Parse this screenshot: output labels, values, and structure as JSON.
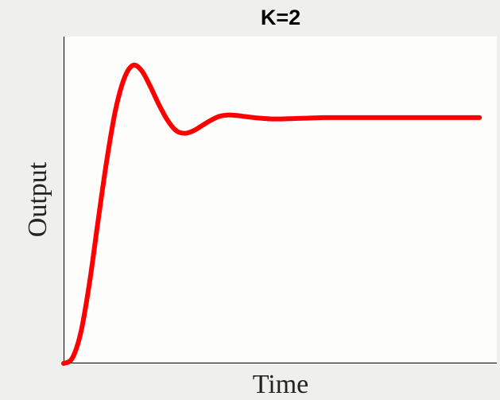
{
  "chart_data": {
    "type": "line",
    "title": "K=2",
    "xlabel": "Time",
    "ylabel": "Output",
    "xticks_visible": false,
    "yticks_visible": false,
    "grid": false,
    "plot_background": "#fdfdfb",
    "figure_background": "#efefee",
    "xlim": [
      0,
      10
    ],
    "ylim": [
      0,
      1.25
    ],
    "series": [
      {
        "color": "#ff0000",
        "x": [
          0,
          0.2,
          0.4,
          0.6,
          0.8,
          1.0,
          1.2,
          1.4,
          1.6,
          1.8,
          2.0,
          2.2,
          2.4,
          2.6,
          2.8,
          3.0,
          3.2,
          3.4,
          3.6,
          3.8,
          4.0,
          4.2,
          4.4,
          4.6,
          4.8,
          5.0,
          5.2,
          5.4,
          5.6,
          5.8,
          6.0,
          6.4,
          6.8,
          7.2,
          7.6,
          8.0,
          8.4,
          8.8,
          9.2,
          9.6
        ],
        "y": [
          0.0,
          0.02,
          0.12,
          0.31,
          0.55,
          0.78,
          0.97,
          1.09,
          1.14,
          1.12,
          1.06,
          0.99,
          0.93,
          0.89,
          0.88,
          0.89,
          0.91,
          0.93,
          0.945,
          0.95,
          0.948,
          0.944,
          0.94,
          0.937,
          0.935,
          0.935,
          0.936,
          0.937,
          0.938,
          0.939,
          0.94,
          0.94,
          0.94,
          0.94,
          0.94,
          0.94,
          0.94,
          0.94,
          0.94,
          0.94
        ]
      }
    ]
  }
}
